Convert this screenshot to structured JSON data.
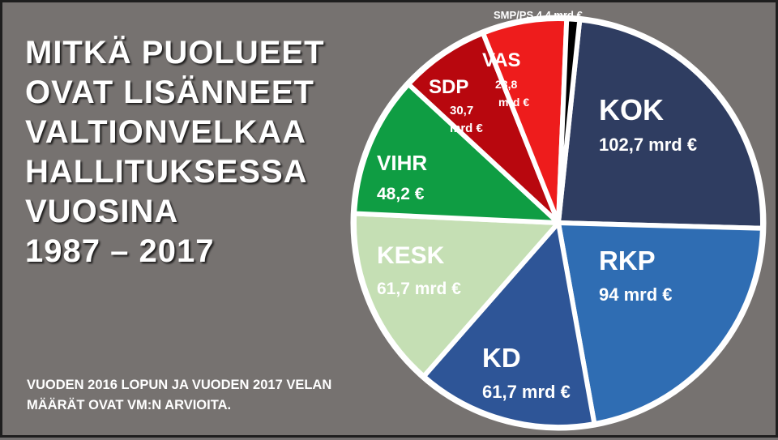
{
  "title_lines": [
    "MITKÄ PUOLUEET",
    "OVAT LISÄNNEET",
    "VALTIONVELKAA",
    "HALLITUKSESSA",
    "VUOSINA",
    "1987 – 2017"
  ],
  "note_lines": [
    "VUODEN 2016 LOPUN JA VUODEN 2017 VELAN",
    "MÄÄRÄT OVAT VM:N ARVIOITA."
  ],
  "chart_data": {
    "type": "pie",
    "unit": "mrd €",
    "slices": [
      {
        "name": "KOK",
        "value": 102.7,
        "value_label": "102,7 mrd €",
        "color": "#2f3d61"
      },
      {
        "name": "RKP",
        "value": 94,
        "value_label": "94 mrd €",
        "color": "#2f6db3"
      },
      {
        "name": "KD",
        "value": 61.7,
        "value_label": "61,7 mrd €",
        "color": "#2e5597"
      },
      {
        "name": "KESK",
        "value": 61.7,
        "value_label": "61,7 mrd €",
        "color": "#c5dfb4"
      },
      {
        "name": "VIHR",
        "value": 48.2,
        "value_label": "48,2 €",
        "color": "#0f9d43"
      },
      {
        "name": "SDP",
        "value": 30.7,
        "value_label": "30,7 mrd €",
        "color": "#b8070e"
      },
      {
        "name": "VAS",
        "value": 28.8,
        "value_label": "28,8 mrd €",
        "color": "#ee1c1c"
      },
      {
        "name": "SMP/PS",
        "value": 4.4,
        "value_label": "SMP/PS 4,4 mrd €",
        "color": "#000000"
      }
    ]
  }
}
